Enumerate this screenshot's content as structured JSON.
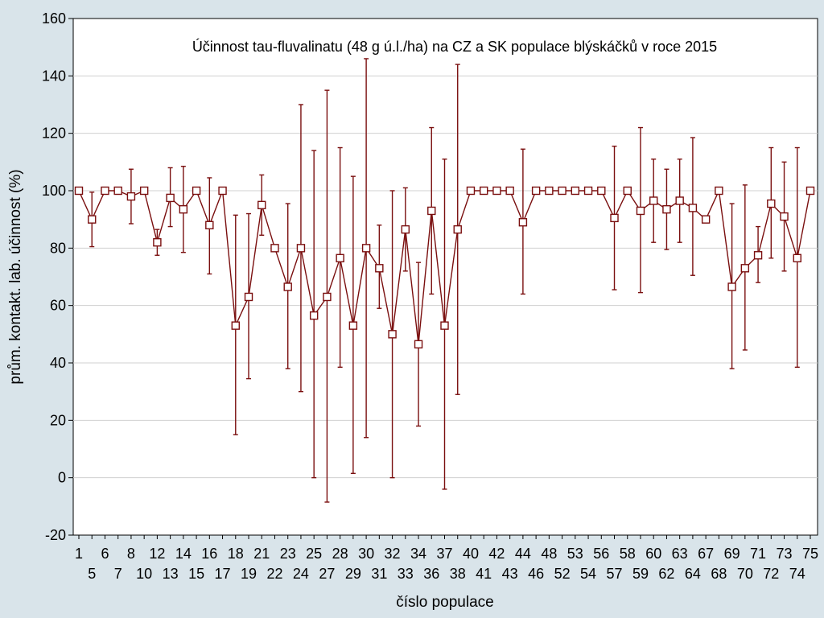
{
  "chart_data": {
    "type": "line",
    "subtype": "mean-with-error-bars",
    "title": "Účinnost tau-fluvalinatu (48 g ú.l./ha) na CZ a SK populace blýskáčků v roce 2015",
    "xlabel": "číslo populace",
    "ylabel": "prům. kontakt. lab. účinnost (%)",
    "ylim": [
      -20,
      160
    ],
    "yticks": [
      -20,
      0,
      20,
      40,
      60,
      80,
      100,
      120,
      140,
      160
    ],
    "grid": "horizontal",
    "colors": {
      "series": "#7a0f0f",
      "background": "#d9e4ea",
      "plot_area": "#ffffff",
      "grid": "#d0d0d0"
    },
    "x_tick_labels_row1": [
      "1",
      "6",
      "8",
      "12",
      "14",
      "16",
      "18",
      "21",
      "23",
      "25",
      "28",
      "30",
      "32",
      "34",
      "37",
      "40",
      "42",
      "44",
      "48",
      "53",
      "56",
      "58",
      "60",
      "63",
      "67",
      "69",
      "71",
      "73",
      "75"
    ],
    "x_tick_labels_row2": [
      "5",
      "7",
      "10",
      "13",
      "15",
      "17",
      "19",
      "22",
      "24",
      "27",
      "29",
      "31",
      "33",
      "36",
      "38",
      "41",
      "43",
      "46",
      "52",
      "54",
      "57",
      "59",
      "62",
      "64",
      "68",
      "70",
      "72",
      "74"
    ],
    "series": [
      {
        "mean": [
          100,
          90,
          100,
          100,
          98,
          100,
          82,
          97.5,
          93.5,
          100,
          88,
          100,
          53,
          63,
          95,
          80,
          66.5,
          80,
          56.5,
          63,
          76.5,
          53,
          80,
          73,
          50,
          86.5,
          46.5,
          93,
          53,
          86.5,
          100,
          100,
          100,
          100,
          89,
          100,
          100,
          100,
          100,
          100,
          100,
          90.5,
          100,
          93,
          96.5,
          93.5,
          96.5,
          94,
          90,
          100,
          66.5,
          73,
          77.5,
          95.5,
          91,
          76.5,
          100
        ],
        "lower": [
          100,
          80.5,
          100,
          100,
          88.5,
          100,
          77.5,
          87.5,
          78.5,
          100,
          71,
          100,
          15,
          34.5,
          84.5,
          80,
          38,
          30,
          0,
          -8.5,
          38.5,
          1.5,
          14,
          59,
          0,
          72,
          18,
          64,
          -4,
          29,
          100,
          100,
          100,
          100,
          64,
          100,
          100,
          100,
          100,
          100,
          100,
          65.5,
          100,
          64.5,
          82,
          79.5,
          82,
          70.5,
          90,
          100,
          38,
          44.5,
          68,
          76.5,
          72,
          38.5,
          100
        ],
        "upper": [
          100,
          99.5,
          100,
          100,
          107.5,
          100,
          86.5,
          108,
          108.5,
          100,
          104.5,
          100,
          91.5,
          92,
          105.5,
          80,
          95.5,
          130,
          114,
          135,
          115,
          105,
          146,
          88,
          100,
          101,
          75,
          122,
          111,
          144,
          100,
          100,
          100,
          100,
          114.5,
          100,
          100,
          100,
          100,
          100,
          100,
          115.5,
          100,
          122,
          111,
          107.5,
          111,
          118.5,
          90,
          100,
          95.5,
          102,
          87.5,
          115,
          110,
          115,
          100
        ]
      }
    ]
  }
}
